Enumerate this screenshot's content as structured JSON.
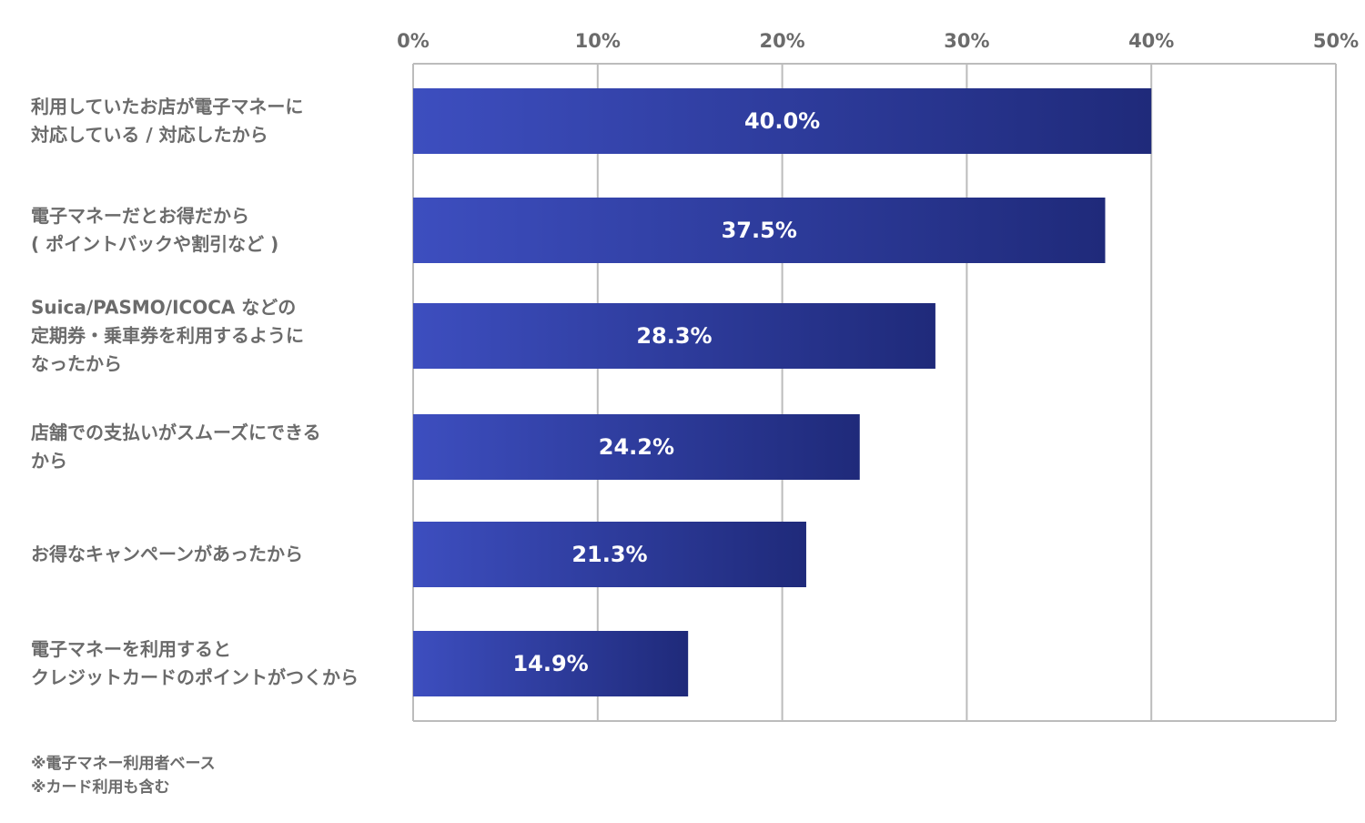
{
  "chart_data": {
    "type": "bar",
    "orientation": "horizontal",
    "categories": [
      "利用していたお店が電子マネーに\n対応している / 対応したから",
      "電子マネーだとお得だから\n( ポイントバックや割引など )",
      "Suica/PASMO/ICOCA などの\n定期券・乗車券を利用するように\nなったから",
      "店舗での支払いがスムーズにできる\nから",
      "お得なキャンペーンがあったから",
      "電子マネーを利用すると\nクレジットカードのポイントがつくから"
    ],
    "values": [
      40.0,
      37.5,
      28.3,
      24.2,
      21.3,
      14.9
    ],
    "data_labels": [
      "40.0%",
      "37.5%",
      "28.3%",
      "24.2%",
      "21.3%",
      "14.9%"
    ],
    "xlim": [
      0,
      50
    ],
    "x_ticks": [
      0,
      10,
      20,
      30,
      40,
      50
    ],
    "x_tick_labels": [
      "0%",
      "10%",
      "20%",
      "30%",
      "40%",
      "50%"
    ],
    "x_axis_position": "top",
    "grid": true,
    "colors": {
      "bar_start": "#3d4ebf",
      "bar_end": "#1f2a7a",
      "grid": "#bcbcbc",
      "text": "#6b6b6b"
    }
  },
  "notes": [
    "※電子マネー利用者ベース",
    "※カード利用も含む"
  ]
}
